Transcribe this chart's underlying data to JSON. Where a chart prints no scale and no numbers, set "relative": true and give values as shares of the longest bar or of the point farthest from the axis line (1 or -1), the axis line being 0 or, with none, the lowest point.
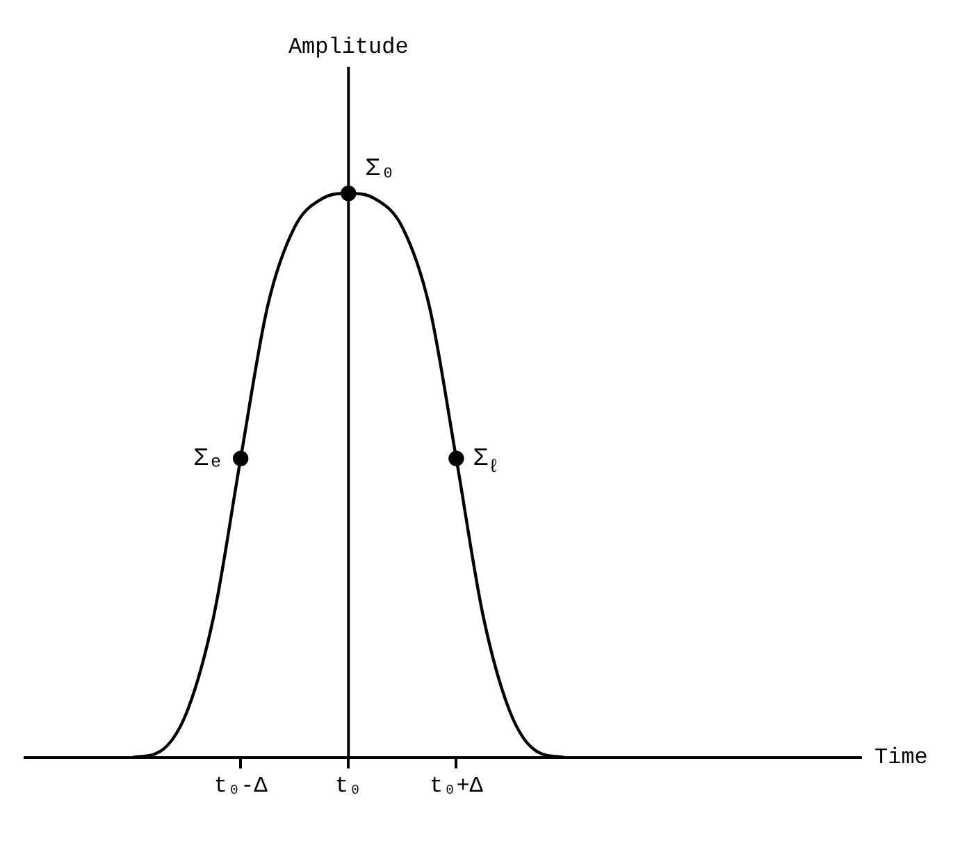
{
  "chart_data": {
    "type": "line",
    "relative": true,
    "xlabel": "Time",
    "categories": [
      null,
      null,
      null,
      null,
      null,
      null,
      null,
      null,
      "t₀-Δ",
      null,
      null,
      null,
      "t₀",
      null,
      null,
      null,
      "t₀+Δ",
      null,
      null,
      null,
      null,
      null,
      null,
      null,
      null,
      null,
      null,
      null,
      null,
      null,
      null,
      null
    ],
    "series": [
      {
        "color": "#000000",
        "marker": "none",
        "values": [
          null,
          null,
          null,
          null,
          0,
          0.01,
          0.08,
          0.25,
          0.53,
          0.8,
          0.94,
          0.99,
          1,
          0.99,
          0.94,
          0.8,
          0.53,
          0.25,
          0.08,
          0.01,
          0,
          null,
          null,
          null,
          null,
          null,
          null,
          null,
          null,
          null,
          null,
          null
        ]
      },
      {
        "type": "scatter",
        "color": "#000000",
        "marker": "circle",
        "values": [
          null,
          null,
          null,
          null,
          null,
          null,
          null,
          null,
          0.53,
          null,
          null,
          null,
          1,
          null,
          null,
          null,
          0.53,
          null,
          null,
          null,
          null,
          null,
          null,
          null,
          null,
          null,
          null,
          null,
          null,
          null,
          null,
          null
        ]
      }
    ],
    "ref_lines": [
      {
        "axis": "x",
        "value": "t₀",
        "color": "#000000",
        "label": "Amplitude"
      }
    ],
    "annotations": [
      {
        "text": "Σ₀",
        "x": "t₀",
        "y": 1
      },
      {
        "text": "Σₑ",
        "x": "t₀-Δ",
        "y": 0.53
      },
      {
        "text": "Σ$_{ℓ}$",
        "x": "t₀+Δ",
        "y": 0.53
      }
    ],
    "grid": false,
    "legend": false
  }
}
